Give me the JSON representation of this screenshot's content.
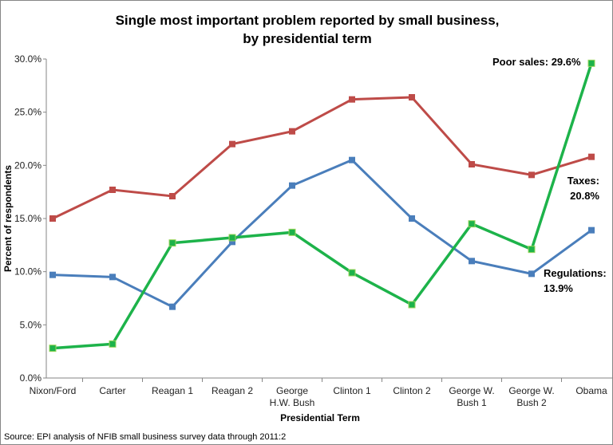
{
  "chart_data": {
    "type": "line",
    "title": "Single most important problem reported by small business,",
    "title_line2": "by presidential term",
    "xlabel": "Presidential Term",
    "ylabel": "Percent of respondents",
    "ylim": [
      0,
      30
    ],
    "yticks": [
      "0.0%",
      "5.0%",
      "10.0%",
      "15.0%",
      "20.0%",
      "25.0%",
      "30.0%"
    ],
    "grid": false,
    "categories": [
      [
        "Nixon/Ford"
      ],
      [
        "Carter"
      ],
      [
        "Reagan 1"
      ],
      [
        "Reagan 2"
      ],
      [
        "George",
        "H.W. Bush"
      ],
      [
        "Clinton 1"
      ],
      [
        "Clinton 2"
      ],
      [
        "George W.",
        "Bush 1"
      ],
      [
        "George W.",
        "Bush 2"
      ],
      [
        "Obama"
      ]
    ],
    "series": [
      {
        "name": "Taxes",
        "color": "#be4b48",
        "values": [
          15.0,
          17.7,
          17.1,
          22.0,
          23.2,
          26.2,
          26.4,
          20.1,
          19.1,
          20.8
        ]
      },
      {
        "name": "Regulations",
        "color": "#4a7ebb",
        "values": [
          9.7,
          9.5,
          6.7,
          12.8,
          18.1,
          20.5,
          15.0,
          11.0,
          9.8,
          13.9
        ]
      },
      {
        "name": "Poor sales",
        "color": "#1db34a",
        "values": [
          2.8,
          3.2,
          12.7,
          13.2,
          13.7,
          9.9,
          6.9,
          14.5,
          12.1,
          29.6
        ]
      }
    ],
    "annotations": [
      {
        "series": "Poor sales",
        "lines": [
          "Poor sales: 29.6%"
        ]
      },
      {
        "series": "Taxes",
        "lines": [
          "Taxes:",
          "20.8%"
        ]
      },
      {
        "series": "Regulations",
        "lines": [
          "Regulations:",
          "13.9%"
        ]
      }
    ],
    "source": "Source: EPI analysis of NFIB small business survey data through 2011:2"
  }
}
